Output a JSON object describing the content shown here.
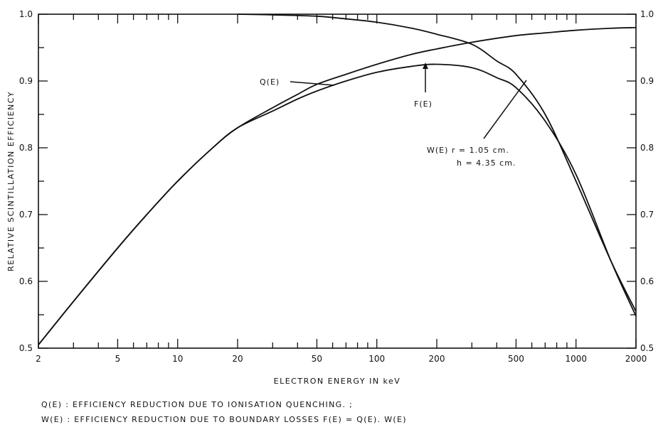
{
  "chart_data": {
    "type": "line",
    "xlabel": "ELECTRON ENERGY IN keV",
    "ylabel": "RELATIVE SCINTILLATION EFFICIENCY",
    "xscale": "log",
    "xlim": [
      2,
      2000
    ],
    "ylim": [
      0.5,
      1.0
    ],
    "x_tick_labels": [
      "2",
      "5",
      "10",
      "20",
      "50",
      "100",
      "200",
      "500",
      "1000",
      "2000"
    ],
    "y_tick_labels_left": [
      "0.5",
      "0.6",
      "0.7",
      "0.8",
      "0.9",
      "1.0"
    ],
    "y_tick_labels_right": [
      "0.5",
      "0.6",
      "0.7",
      "0.8",
      "0.9",
      "1.0"
    ],
    "grid": false,
    "series": [
      {
        "name": "Q(E)",
        "x": [
          2,
          3,
          5,
          7,
          10,
          15,
          20,
          30,
          40,
          50,
          70,
          100,
          150,
          200,
          300,
          500,
          700,
          1000,
          1500,
          2000
        ],
        "y": [
          0.505,
          0.57,
          0.65,
          0.7,
          0.75,
          0.8,
          0.83,
          0.86,
          0.88,
          0.895,
          0.91,
          0.925,
          0.94,
          0.948,
          0.958,
          0.968,
          0.972,
          0.976,
          0.979,
          0.98
        ]
      },
      {
        "name": "W(E)",
        "x": [
          20,
          30,
          50,
          70,
          100,
          150,
          200,
          300,
          400,
          500,
          700,
          1000,
          1500,
          2000
        ],
        "y": [
          1.0,
          0.999,
          0.997,
          0.993,
          0.988,
          0.979,
          0.97,
          0.955,
          0.93,
          0.91,
          0.85,
          0.75,
          0.63,
          0.555
        ]
      },
      {
        "name": "F(E)",
        "x": [
          2,
          3,
          5,
          7,
          10,
          15,
          20,
          30,
          40,
          50,
          70,
          100,
          150,
          200,
          300,
          400,
          500,
          700,
          1000,
          1500,
          2000
        ],
        "y": [
          0.505,
          0.57,
          0.65,
          0.7,
          0.75,
          0.8,
          0.83,
          0.855,
          0.873,
          0.885,
          0.9,
          0.913,
          0.922,
          0.925,
          0.92,
          0.905,
          0.89,
          0.84,
          0.76,
          0.63,
          0.548
        ]
      }
    ],
    "annotations": {
      "q": "Q(E)",
      "f": "F(E)",
      "w_line1": "W(E) r = 1.05 cm.",
      "w_line2": "h = 4.35 cm."
    }
  },
  "captions": {
    "line1": "Q(E) : EFFICIENCY REDUCTION DUE TO IONISATION QUENCHING. ;",
    "line2": "W(E) : EFFICIENCY REDUCTION DUE TO BOUNDARY LOSSES F(E) = Q(E). W(E)"
  }
}
